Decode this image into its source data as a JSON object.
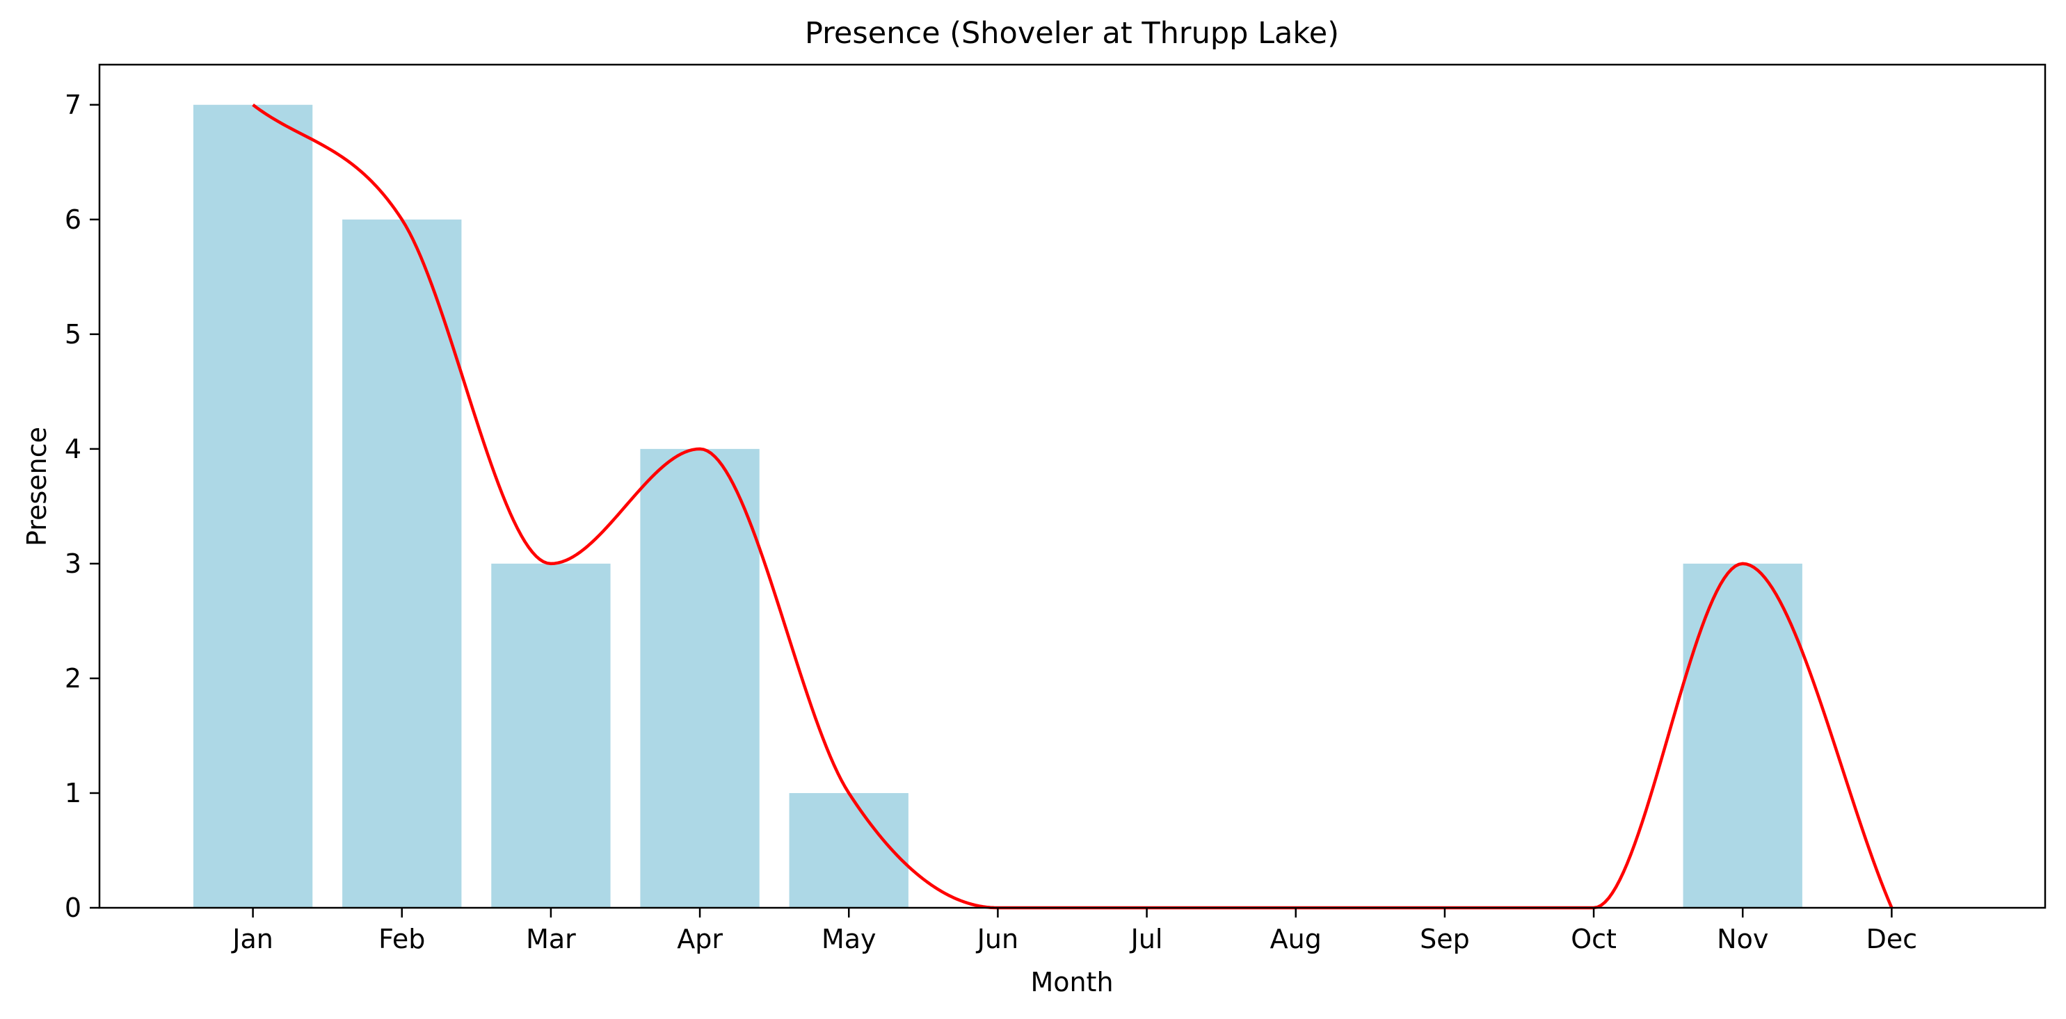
{
  "chart_data": {
    "type": "bar",
    "title": "Presence (Shoveler at Thrupp Lake)",
    "xlabel": "Month",
    "ylabel": "Presence",
    "categories": [
      "Jan",
      "Feb",
      "Mar",
      "Apr",
      "May",
      "Jun",
      "Jul",
      "Aug",
      "Sep",
      "Oct",
      "Nov",
      "Dec"
    ],
    "values": [
      7,
      6,
      3,
      4,
      1,
      0,
      0,
      0,
      0,
      0,
      3,
      0
    ],
    "ylim": [
      0,
      7.35
    ],
    "yticks": [
      0,
      1,
      2,
      3,
      4,
      5,
      6,
      7
    ],
    "grid": false,
    "smoothed_line": {
      "type": "line",
      "interpolation": "spline",
      "values": [
        7,
        6,
        3,
        4,
        1,
        0,
        0,
        0,
        0,
        0,
        3,
        0
      ]
    },
    "colors": {
      "bar": "#add8e6",
      "line": "#ff0000"
    }
  }
}
